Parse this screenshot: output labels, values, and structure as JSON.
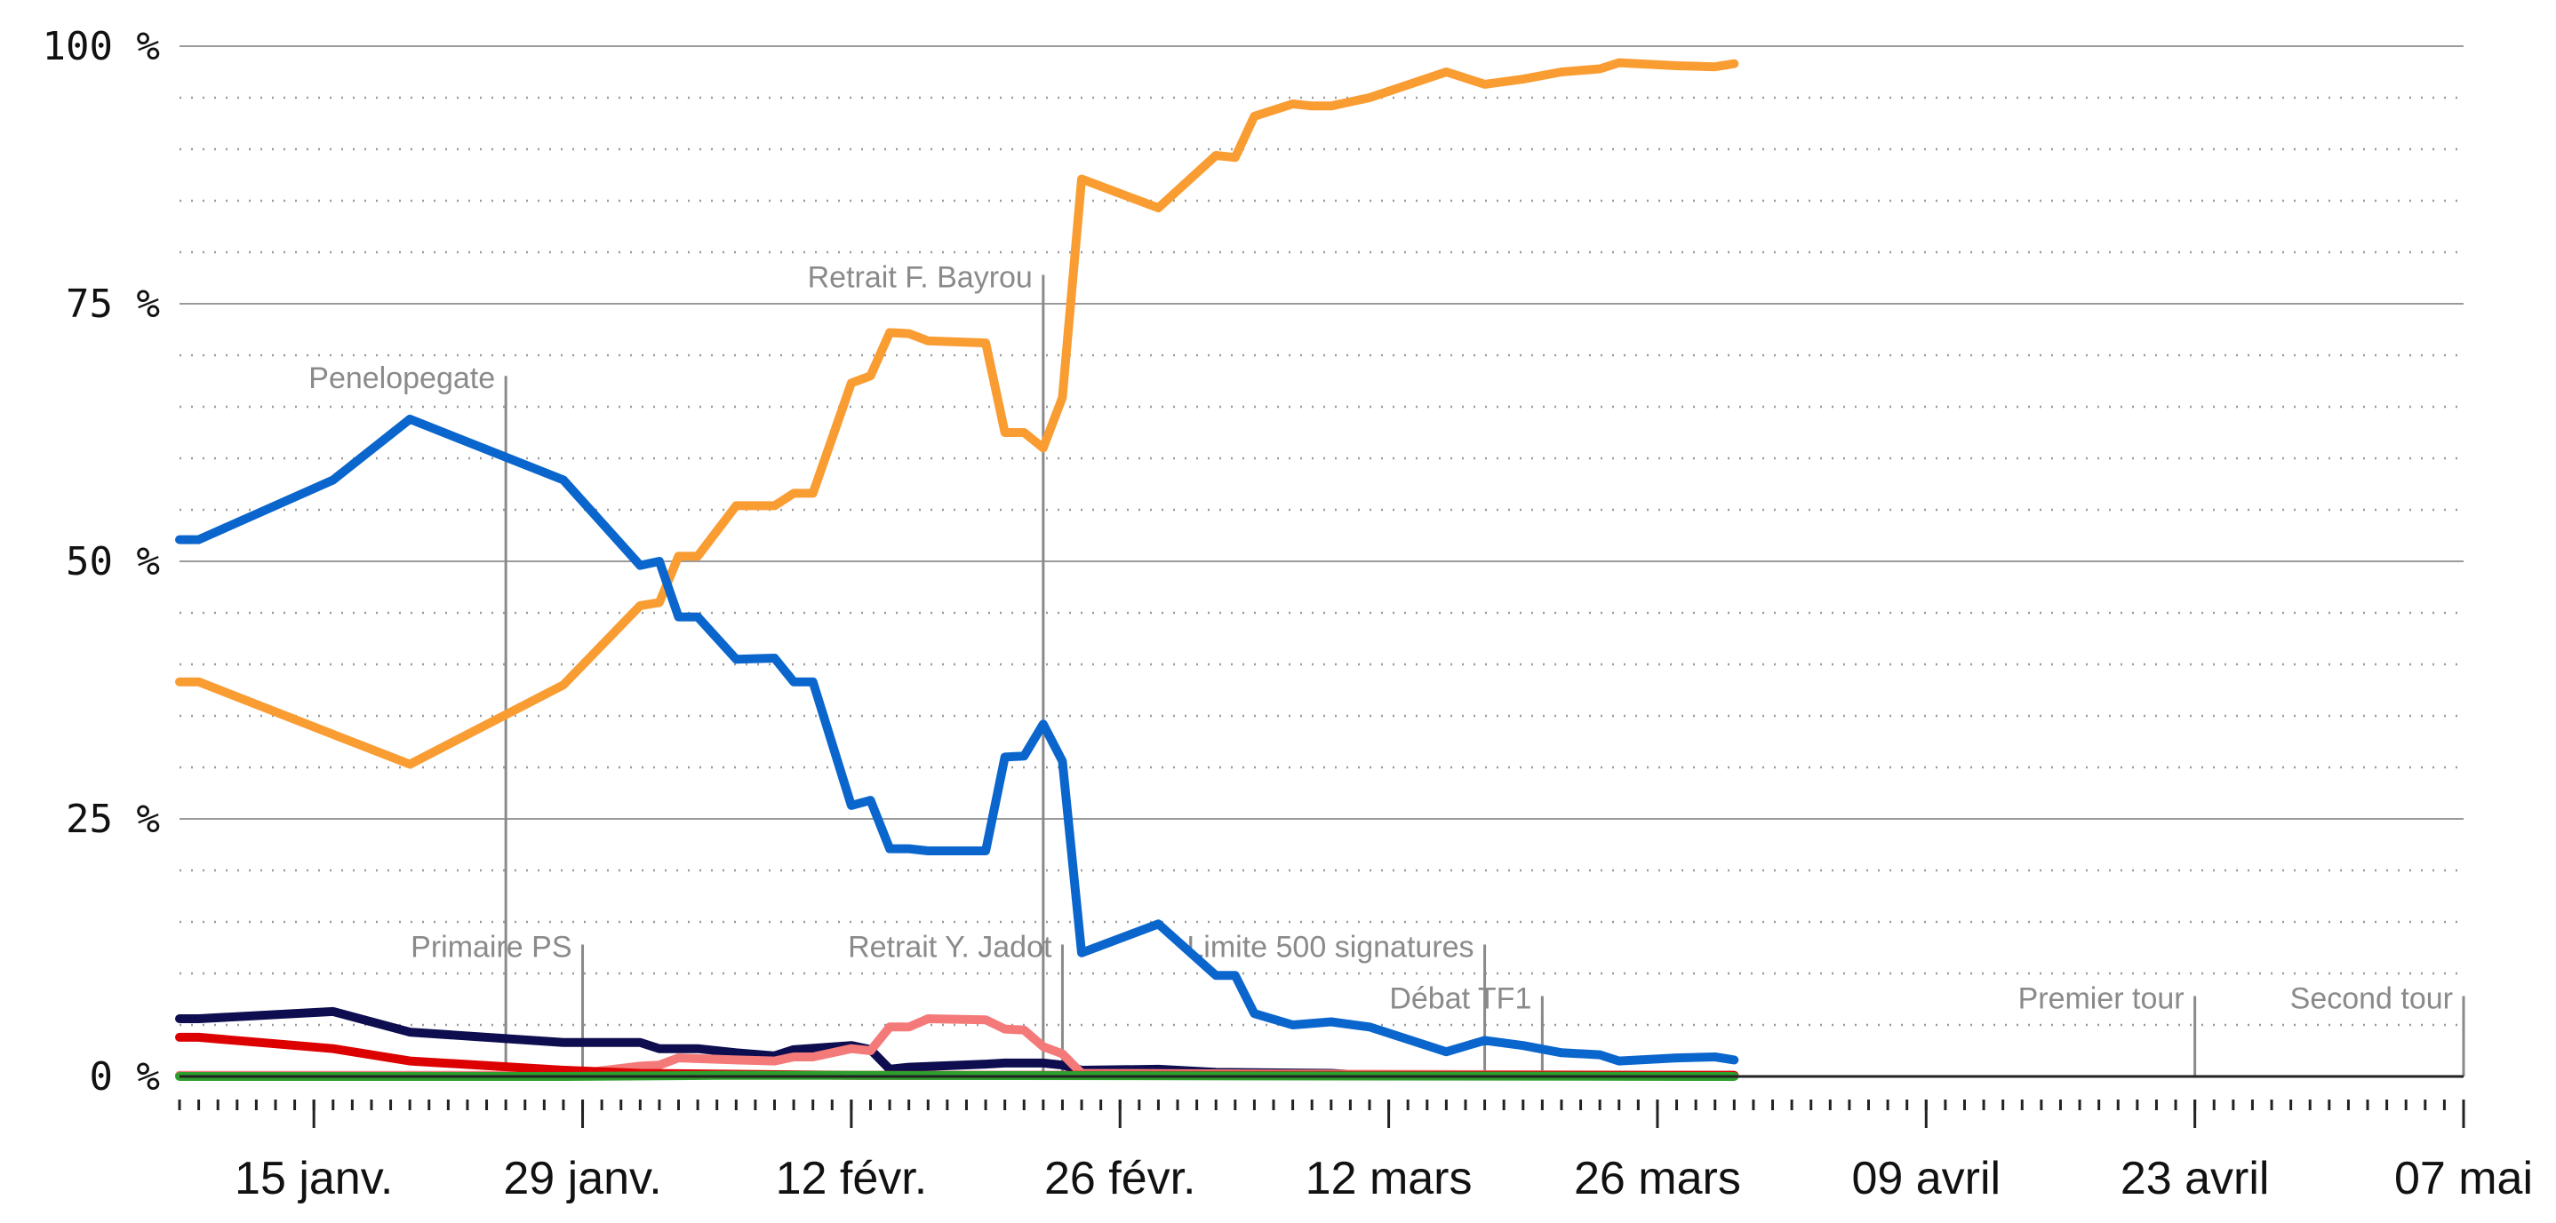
{
  "chart_data": {
    "type": "line",
    "x_axis": {
      "type": "date",
      "range": [
        "2017-01-08",
        "2017-05-07"
      ],
      "ticks": [
        {
          "date": "2017-01-15",
          "label": "15 janv."
        },
        {
          "date": "2017-01-29",
          "label": "29 janv."
        },
        {
          "date": "2017-02-12",
          "label": "12 févr."
        },
        {
          "date": "2017-02-26",
          "label": "26 févr."
        },
        {
          "date": "2017-03-12",
          "label": "12 mars"
        },
        {
          "date": "2017-03-26",
          "label": "26 mars"
        },
        {
          "date": "2017-04-09",
          "label": "09 avril"
        },
        {
          "date": "2017-04-23",
          "label": "23 avril"
        },
        {
          "date": "2017-05-07",
          "label": "07 mai"
        }
      ],
      "minor_ticks": "daily"
    },
    "y_axis": {
      "range": [
        0,
        100
      ],
      "ticks": [
        {
          "value": 0,
          "label": "0 %"
        },
        {
          "value": 25,
          "label": "25 %"
        },
        {
          "value": 50,
          "label": "50 %"
        },
        {
          "value": 75,
          "label": "75 %"
        },
        {
          "value": 100,
          "label": "100 %"
        }
      ],
      "minor_grid_step": 5
    },
    "grid": true,
    "annotations": [
      {
        "date": "2017-01-25",
        "label": "Penelopegate",
        "y_top": 68
      },
      {
        "date": "2017-01-29",
        "label": "Primaire PS",
        "y_top": 12.8
      },
      {
        "date": "2017-02-22",
        "label": "Retrait F. Bayrou",
        "y_top": 77.8
      },
      {
        "date": "2017-02-23",
        "label": "Retrait Y. Jadot",
        "y_top": 12.8
      },
      {
        "date": "2017-03-17",
        "label": "Limite 500 signatures",
        "y_top": 12.8
      },
      {
        "date": "2017-03-20",
        "label": "Débat TF1",
        "y_top": 7.8
      },
      {
        "date": "2017-04-23",
        "label": "Premier tour",
        "y_top": 7.8
      },
      {
        "date": "2017-05-07",
        "label": "Second tour",
        "y_top": 7.8
      }
    ],
    "series": [
      {
        "color": "#f99d33",
        "points": [
          [
            "2017-01-08",
            38.3
          ],
          [
            "2017-01-09",
            38.3
          ],
          [
            "2017-01-16",
            33.2
          ],
          [
            "2017-01-20",
            30.3
          ],
          [
            "2017-01-28",
            38.0
          ],
          [
            "2017-02-01",
            45.7
          ],
          [
            "2017-02-02",
            46.0
          ],
          [
            "2017-02-03",
            50.5
          ],
          [
            "2017-02-04",
            50.5
          ],
          [
            "2017-02-06",
            55.4
          ],
          [
            "2017-02-08",
            55.4
          ],
          [
            "2017-02-09",
            56.6
          ],
          [
            "2017-02-10",
            56.6
          ],
          [
            "2017-02-12",
            67.3
          ],
          [
            "2017-02-13",
            68.0
          ],
          [
            "2017-02-14",
            72.2
          ],
          [
            "2017-02-15",
            72.1
          ],
          [
            "2017-02-16",
            71.4
          ],
          [
            "2017-02-19",
            71.2
          ],
          [
            "2017-02-20",
            62.5
          ],
          [
            "2017-02-21",
            62.5
          ],
          [
            "2017-02-22",
            61.0
          ],
          [
            "2017-02-23",
            65.9
          ],
          [
            "2017-02-24",
            87.1
          ],
          [
            "2017-02-28",
            84.3
          ],
          [
            "2017-03-03",
            89.4
          ],
          [
            "2017-03-04",
            89.2
          ],
          [
            "2017-03-05",
            93.2
          ],
          [
            "2017-03-07",
            94.4
          ],
          [
            "2017-03-08",
            94.2
          ],
          [
            "2017-03-09",
            94.2
          ],
          [
            "2017-03-11",
            95.0
          ],
          [
            "2017-03-15",
            97.5
          ],
          [
            "2017-03-17",
            96.3
          ],
          [
            "2017-03-19",
            96.8
          ],
          [
            "2017-03-21",
            97.5
          ],
          [
            "2017-03-23",
            97.8
          ],
          [
            "2017-03-24",
            98.4
          ],
          [
            "2017-03-27",
            98.1
          ],
          [
            "2017-03-29",
            98.0
          ],
          [
            "2017-03-30",
            98.3
          ]
        ]
      },
      {
        "color": "#0a66cc",
        "points": [
          [
            "2017-01-08",
            52.1
          ],
          [
            "2017-01-09",
            52.1
          ],
          [
            "2017-01-16",
            57.9
          ],
          [
            "2017-01-20",
            63.8
          ],
          [
            "2017-01-28",
            57.9
          ],
          [
            "2017-02-01",
            49.6
          ],
          [
            "2017-02-02",
            50.0
          ],
          [
            "2017-02-03",
            44.6
          ],
          [
            "2017-02-04",
            44.6
          ],
          [
            "2017-02-06",
            40.5
          ],
          [
            "2017-02-08",
            40.6
          ],
          [
            "2017-02-09",
            38.3
          ],
          [
            "2017-02-10",
            38.3
          ],
          [
            "2017-02-12",
            26.3
          ],
          [
            "2017-02-13",
            26.8
          ],
          [
            "2017-02-14",
            22.1
          ],
          [
            "2017-02-15",
            22.1
          ],
          [
            "2017-02-16",
            21.9
          ],
          [
            "2017-02-19",
            21.9
          ],
          [
            "2017-02-20",
            31.0
          ],
          [
            "2017-02-21",
            31.1
          ],
          [
            "2017-02-22",
            34.2
          ],
          [
            "2017-02-23",
            30.6
          ],
          [
            "2017-02-24",
            12.0
          ],
          [
            "2017-02-28",
            14.8
          ],
          [
            "2017-03-03",
            9.8
          ],
          [
            "2017-03-04",
            9.8
          ],
          [
            "2017-03-05",
            6.1
          ],
          [
            "2017-03-07",
            5.0
          ],
          [
            "2017-03-09",
            5.3
          ],
          [
            "2017-03-11",
            4.8
          ],
          [
            "2017-03-15",
            2.4
          ],
          [
            "2017-03-17",
            3.5
          ],
          [
            "2017-03-19",
            3.0
          ],
          [
            "2017-03-21",
            2.3
          ],
          [
            "2017-03-23",
            2.1
          ],
          [
            "2017-03-24",
            1.5
          ],
          [
            "2017-03-27",
            1.8
          ],
          [
            "2017-03-29",
            1.9
          ],
          [
            "2017-03-30",
            1.6
          ]
        ]
      },
      {
        "color": "#0d0d4f",
        "points": [
          [
            "2017-01-08",
            5.6
          ],
          [
            "2017-01-09",
            5.6
          ],
          [
            "2017-01-16",
            6.3
          ],
          [
            "2017-01-20",
            4.3
          ],
          [
            "2017-01-28",
            3.3
          ],
          [
            "2017-02-01",
            3.3
          ],
          [
            "2017-02-02",
            2.7
          ],
          [
            "2017-02-04",
            2.7
          ],
          [
            "2017-02-06",
            2.3
          ],
          [
            "2017-02-08",
            2.0
          ],
          [
            "2017-02-09",
            2.6
          ],
          [
            "2017-02-12",
            3.0
          ],
          [
            "2017-02-13",
            2.6
          ],
          [
            "2017-02-14",
            0.7
          ],
          [
            "2017-02-15",
            0.9
          ],
          [
            "2017-02-19",
            1.2
          ],
          [
            "2017-02-20",
            1.3
          ],
          [
            "2017-02-22",
            1.3
          ],
          [
            "2017-02-23",
            1.1
          ],
          [
            "2017-02-24",
            0.6
          ],
          [
            "2017-02-28",
            0.7
          ],
          [
            "2017-03-03",
            0.4
          ],
          [
            "2017-03-09",
            0.3
          ],
          [
            "2017-03-11",
            0.1
          ],
          [
            "2017-03-30",
            0.1
          ]
        ]
      },
      {
        "color": "#f47a7a",
        "points": [
          [
            "2017-01-08",
            0.1
          ],
          [
            "2017-01-28",
            0.1
          ],
          [
            "2017-02-01",
            1.0
          ],
          [
            "2017-02-02",
            1.1
          ],
          [
            "2017-02-03",
            1.8
          ],
          [
            "2017-02-06",
            1.6
          ],
          [
            "2017-02-08",
            1.5
          ],
          [
            "2017-02-09",
            1.9
          ],
          [
            "2017-02-10",
            1.9
          ],
          [
            "2017-02-12",
            2.7
          ],
          [
            "2017-02-13",
            2.5
          ],
          [
            "2017-02-14",
            4.8
          ],
          [
            "2017-02-15",
            4.8
          ],
          [
            "2017-02-16",
            5.6
          ],
          [
            "2017-02-19",
            5.5
          ],
          [
            "2017-02-20",
            4.6
          ],
          [
            "2017-02-21",
            4.5
          ],
          [
            "2017-02-22",
            2.9
          ],
          [
            "2017-02-23",
            2.2
          ],
          [
            "2017-02-24",
            0.3
          ],
          [
            "2017-03-30",
            0.1
          ]
        ]
      },
      {
        "color": "#dd0000",
        "points": [
          [
            "2017-01-08",
            3.8
          ],
          [
            "2017-01-09",
            3.8
          ],
          [
            "2017-01-16",
            2.7
          ],
          [
            "2017-01-20",
            1.5
          ],
          [
            "2017-01-28",
            0.6
          ],
          [
            "2017-02-01",
            0.3
          ],
          [
            "2017-02-12",
            0.1
          ],
          [
            "2017-03-30",
            0.1
          ]
        ]
      },
      {
        "color": "#2e9e2e",
        "points": [
          [
            "2017-01-08",
            0.0
          ],
          [
            "2017-01-28",
            0.0
          ],
          [
            "2017-02-05",
            0.1
          ],
          [
            "2017-02-12",
            0.1
          ],
          [
            "2017-03-30",
            0.0
          ]
        ]
      }
    ]
  }
}
